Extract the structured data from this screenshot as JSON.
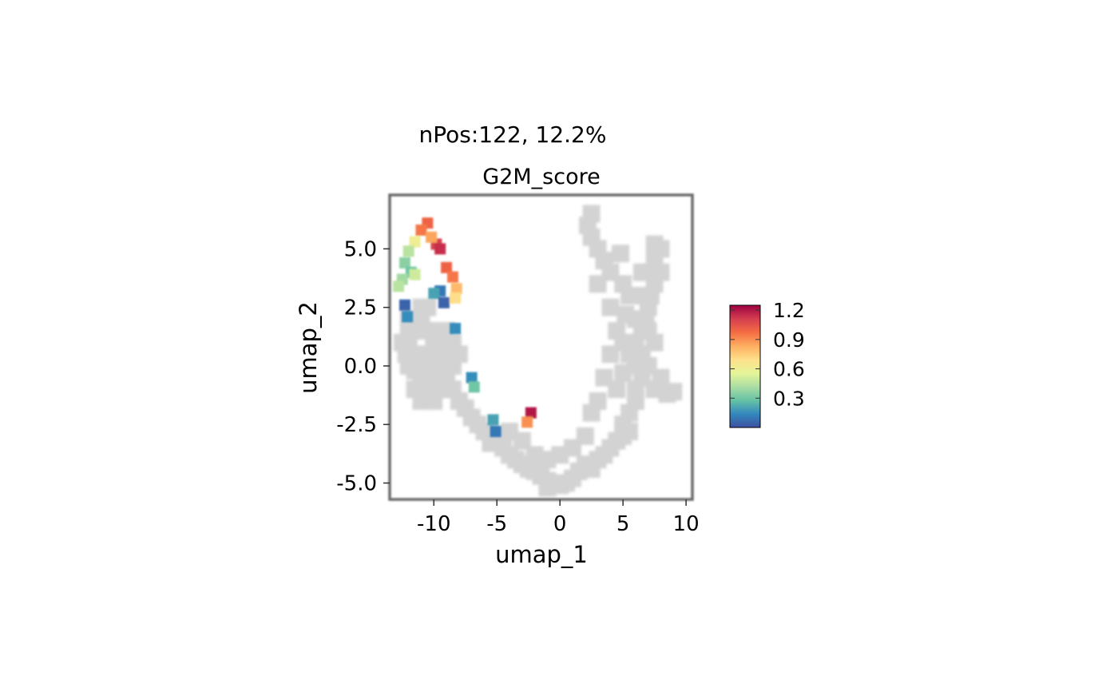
{
  "chart_data": {
    "type": "scatter",
    "title": "nPos:122, 12.2%",
    "subtitle": "G2M_score",
    "xlabel": "umap_1",
    "ylabel": "umap_2",
    "xlim": [
      -13.5,
      10.5
    ],
    "ylim": [
      -5.7,
      7.3
    ],
    "xticks": [
      -10,
      -5,
      0,
      5,
      10
    ],
    "xtick_labels": [
      "-10",
      "-5",
      "0",
      "5",
      "10"
    ],
    "yticks": [
      5.0,
      2.5,
      0.0,
      -2.5,
      -5.0
    ],
    "ytick_labels": [
      "5.0",
      "2.5",
      "0.0",
      "-2.5",
      "-5.0"
    ],
    "grid": false,
    "background_color": "#d3d3d3",
    "background_cells": [
      [
        -12,
        1.5
      ],
      [
        -11,
        2
      ],
      [
        -12,
        1
      ],
      [
        -11.5,
        0.5
      ],
      [
        -11,
        0
      ],
      [
        -10.5,
        0.5
      ],
      [
        -10,
        1
      ],
      [
        -9.5,
        0.5
      ],
      [
        -9,
        1
      ],
      [
        -9,
        0
      ],
      [
        -10,
        -0.5
      ],
      [
        -11,
        -0.5
      ],
      [
        -11.5,
        -1
      ],
      [
        -10.5,
        -1
      ],
      [
        -9.5,
        -1
      ],
      [
        -9,
        -0.5
      ],
      [
        -8.5,
        0
      ],
      [
        -8.5,
        1
      ],
      [
        -10,
        1.5
      ],
      [
        -9,
        1.5
      ],
      [
        -11,
        2.5
      ],
      [
        -12,
        2
      ],
      [
        -10.5,
        2.5
      ],
      [
        -12,
        0
      ],
      [
        -12.5,
        1
      ],
      [
        -11,
        1.5
      ],
      [
        -8,
        0.5
      ],
      [
        -8.5,
        -1
      ],
      [
        -10,
        -1.5
      ],
      [
        -11,
        -1.5
      ],
      [
        -8,
        -1.5
      ],
      [
        -7.5,
        -1.8
      ],
      [
        -7,
        -2.2
      ],
      [
        -6.5,
        -2.5
      ],
      [
        -6,
        -2.8
      ],
      [
        -5,
        -3
      ],
      [
        -5.5,
        -3.3
      ],
      [
        -4.5,
        -3.5
      ],
      [
        -4,
        -3.8
      ],
      [
        -3.5,
        -4
      ],
      [
        -3,
        -4.2
      ],
      [
        -2.5,
        -4.4
      ],
      [
        -2,
        -4.5
      ],
      [
        -1.5,
        -4.7
      ],
      [
        -1,
        -4.9
      ],
      [
        -0.5,
        -5
      ],
      [
        0,
        -5.1
      ],
      [
        0.5,
        -5
      ],
      [
        -1,
        -5.2
      ],
      [
        1,
        -4.8
      ],
      [
        1.5,
        -4.5
      ],
      [
        2,
        -4.2
      ],
      [
        2.5,
        -4.4
      ],
      [
        3,
        -4
      ],
      [
        3.5,
        -3.8
      ],
      [
        4,
        -3.5
      ],
      [
        4.5,
        -3.2
      ],
      [
        5,
        -3
      ],
      [
        5.5,
        -2.8
      ],
      [
        5,
        -2.5
      ],
      [
        5.5,
        -2
      ],
      [
        6,
        -1.5
      ],
      [
        6,
        -1
      ],
      [
        6.5,
        -0.5
      ],
      [
        6,
        0
      ],
      [
        6.5,
        0.5
      ],
      [
        5.5,
        0.5
      ],
      [
        6,
        1
      ],
      [
        5,
        1
      ],
      [
        6.5,
        1.5
      ],
      [
        7,
        1.5
      ],
      [
        6,
        2
      ],
      [
        7,
        2.5
      ],
      [
        6.5,
        3
      ],
      [
        7.5,
        3.5
      ],
      [
        7,
        4
      ],
      [
        7.5,
        4.5
      ],
      [
        8,
        5
      ],
      [
        7.5,
        5.2
      ],
      [
        6.5,
        4
      ],
      [
        5.5,
        3
      ],
      [
        5,
        3.5
      ],
      [
        4,
        4
      ],
      [
        3.5,
        4.5
      ],
      [
        3,
        5
      ],
      [
        2.5,
        5.5
      ],
      [
        2.2,
        6
      ],
      [
        2.5,
        6.5
      ],
      [
        3,
        3.5
      ],
      [
        4,
        2.5
      ],
      [
        4.5,
        1.5
      ],
      [
        4,
        0.5
      ],
      [
        3.5,
        -0.5
      ],
      [
        4.5,
        -1
      ],
      [
        7.5,
        -1
      ],
      [
        8,
        -0.5
      ],
      [
        8.5,
        -1.2
      ],
      [
        9,
        -1.1
      ],
      [
        7,
        0
      ],
      [
        7.5,
        1
      ],
      [
        5,
        -0.3
      ],
      [
        3,
        -1.5
      ],
      [
        2.5,
        -2
      ],
      [
        2,
        -3
      ],
      [
        1,
        -3.5
      ],
      [
        0,
        -3.8
      ],
      [
        -1,
        -4
      ],
      [
        -2,
        -3.8
      ],
      [
        -3,
        -3.2
      ],
      [
        -4,
        -2.8
      ],
      [
        7.2,
        3
      ],
      [
        6.8,
        2
      ],
      [
        5.2,
        2.2
      ],
      [
        4.8,
        4.8
      ],
      [
        8,
        4
      ],
      [
        -11.5,
        -0.2
      ],
      [
        -10.2,
        0.2
      ],
      [
        -9.8,
        -0.8
      ],
      [
        -12.2,
        0.5
      ],
      [
        -8.8,
        0.6
      ]
    ],
    "points": [
      {
        "x": -10.5,
        "y": 6.1,
        "v": 1.0
      },
      {
        "x": -11,
        "y": 5.8,
        "v": 0.95
      },
      {
        "x": -9.8,
        "y": 5.2,
        "v": 1.1
      },
      {
        "x": -9.5,
        "y": 5.0,
        "v": 1.15
      },
      {
        "x": -10.2,
        "y": 5.5,
        "v": 0.85
      },
      {
        "x": -11.5,
        "y": 5.3,
        "v": 0.6
      },
      {
        "x": -12,
        "y": 4.9,
        "v": 0.45
      },
      {
        "x": -12.3,
        "y": 4.4,
        "v": 0.35
      },
      {
        "x": -11.8,
        "y": 4.0,
        "v": 0.3
      },
      {
        "x": -12.5,
        "y": 3.7,
        "v": 0.4
      },
      {
        "x": -12.8,
        "y": 3.4,
        "v": 0.45
      },
      {
        "x": -11.5,
        "y": 3.9,
        "v": 0.5
      },
      {
        "x": -9,
        "y": 4.2,
        "v": 1.0
      },
      {
        "x": -8.5,
        "y": 3.8,
        "v": 0.95
      },
      {
        "x": -8.2,
        "y": 3.3,
        "v": 0.8
      },
      {
        "x": -8.3,
        "y": 2.9,
        "v": 0.7
      },
      {
        "x": -9.5,
        "y": 3.2,
        "v": 0.1
      },
      {
        "x": -10,
        "y": 3.1,
        "v": 0.2
      },
      {
        "x": -12.3,
        "y": 2.6,
        "v": 0.05
      },
      {
        "x": -12.1,
        "y": 2.1,
        "v": 0.15
      },
      {
        "x": -9.2,
        "y": 2.7,
        "v": 0.05
      },
      {
        "x": -8.3,
        "y": 1.6,
        "v": 0.15
      },
      {
        "x": -7,
        "y": -0.5,
        "v": 0.15
      },
      {
        "x": -6.8,
        "y": -0.9,
        "v": 0.3
      },
      {
        "x": -5.3,
        "y": -2.3,
        "v": 0.2
      },
      {
        "x": -5.1,
        "y": -2.8,
        "v": 0.1
      },
      {
        "x": -2.3,
        "y": -2.0,
        "v": 1.2
      },
      {
        "x": -2.6,
        "y": -2.4,
        "v": 0.9
      }
    ],
    "colorbar": {
      "min": 0.0,
      "max": 1.25,
      "ticks": [
        1.2,
        0.9,
        0.6,
        0.3
      ],
      "tick_labels": [
        "1.2",
        "0.9",
        "0.6",
        "0.3"
      ],
      "colors": [
        "#3e4fa0",
        "#3288bd",
        "#66c2a5",
        "#abdda4",
        "#e6f598",
        "#fee08b",
        "#fdae61",
        "#f46d43",
        "#d53e4f",
        "#9e0142"
      ],
      "placement": "right"
    }
  }
}
